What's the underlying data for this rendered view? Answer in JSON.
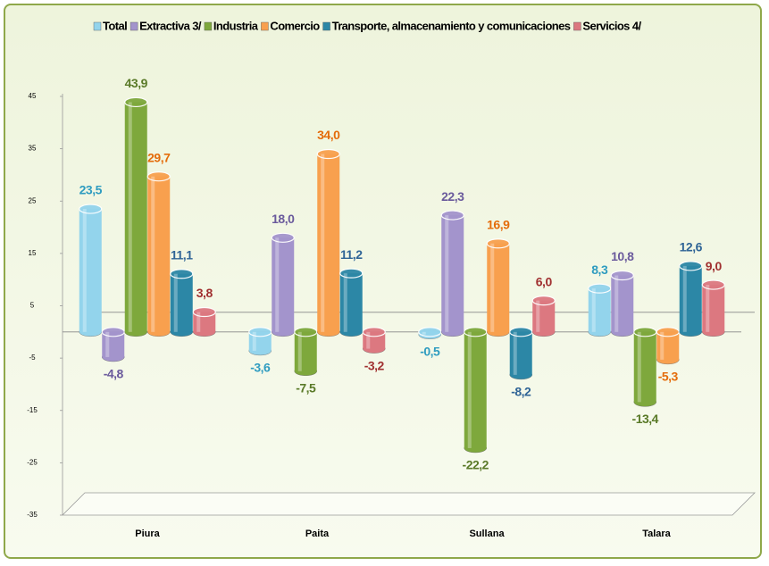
{
  "chart_data": {
    "type": "bar",
    "categories": [
      "Piura",
      "Paita",
      "Sullana",
      "Talara"
    ],
    "series": [
      {
        "name": "Total",
        "color": "#93d4ec",
        "label_color": "#2f9cc0",
        "values": [
          23.5,
          -3.6,
          -0.5,
          8.3
        ],
        "value_labels": [
          "23,5",
          "-3,6",
          "-0,5",
          "8,3"
        ]
      },
      {
        "name": "Extractiva  3/",
        "color": "#a394cc",
        "label_color": "#6a5a9c",
        "values": [
          -4.8,
          18.0,
          22.3,
          10.8
        ],
        "value_labels": [
          "-4,8",
          "18,0",
          "22,3",
          "10,8"
        ]
      },
      {
        "name": "Industria",
        "color": "#7ea83c",
        "label_color": "#5a7a28",
        "values": [
          43.9,
          -7.5,
          -22.2,
          -13.4
        ],
        "value_labels": [
          "43,9",
          "-7,5",
          "-22,2",
          "-13,4"
        ]
      },
      {
        "name": "Comercio",
        "color": "#f8a04e",
        "label_color": "#e46c0a",
        "values": [
          29.7,
          34.0,
          16.9,
          -5.3
        ],
        "value_labels": [
          "29,7",
          "34,0",
          "16,9",
          "-5,3"
        ]
      },
      {
        "name": "Transporte, almacenamiento y comunicaciones",
        "color": "#2c87a6",
        "label_color": "#2f6496",
        "values": [
          11.1,
          11.2,
          -8.2,
          12.6
        ],
        "value_labels": [
          "11,1",
          "11,2",
          "-8,2",
          "12,6"
        ]
      },
      {
        "name": "Servicios  4/",
        "color": "#dc7880",
        "label_color": "#a03030",
        "values": [
          3.8,
          -3.2,
          6.0,
          9.0
        ],
        "value_labels": [
          "3,8",
          "-3,2",
          "6,0",
          "9,0"
        ]
      }
    ],
    "ylim": [
      -35,
      45
    ],
    "yticks": [
      -35,
      -25,
      -15,
      -5,
      5,
      15,
      25,
      35,
      45
    ],
    "grid": false,
    "legend": "top"
  }
}
